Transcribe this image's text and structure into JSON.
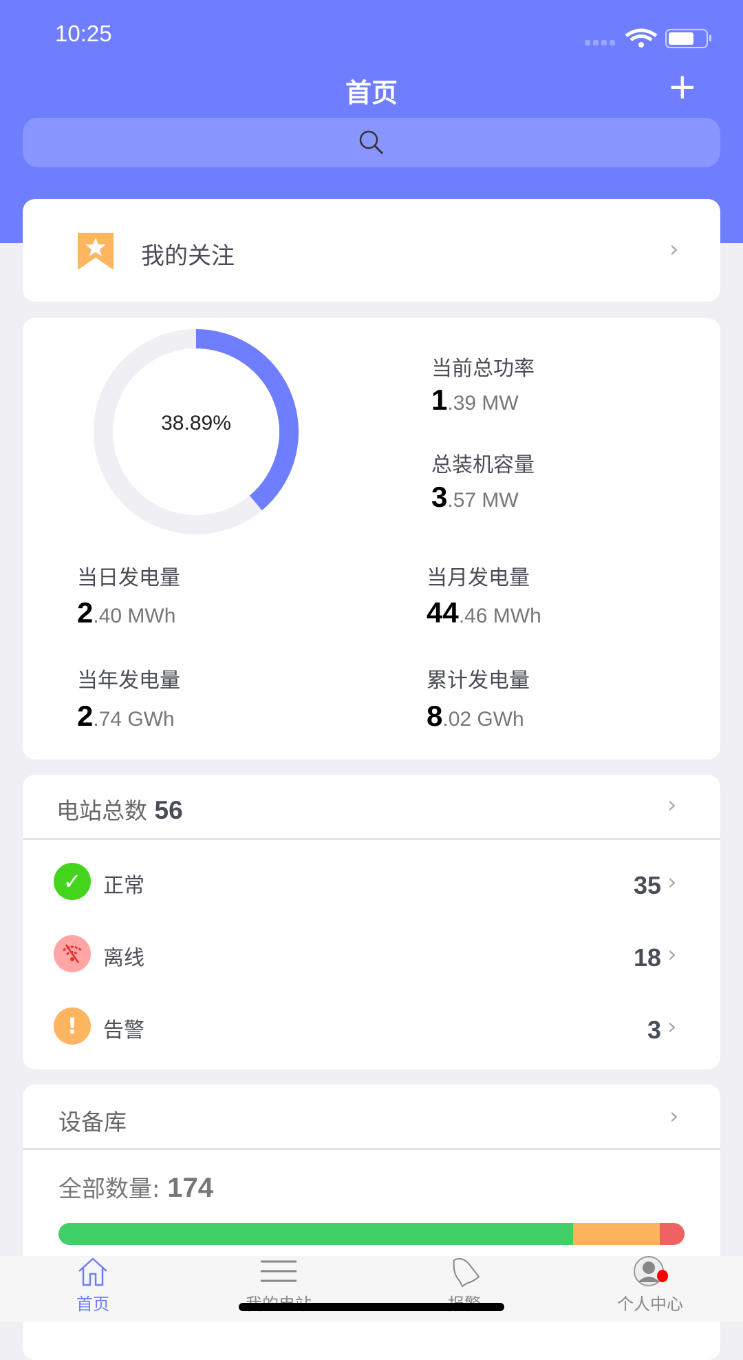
{
  "status_bar": {
    "time": "10:25"
  },
  "header": {
    "title": "首页",
    "add_icon": "plus-icon",
    "search_icon": "search-icon"
  },
  "favorites": {
    "label": "我的关注",
    "icon": "bookmark-star-icon"
  },
  "power": {
    "ratio_label": "38.89%",
    "ratio_value": 0.3889,
    "current_power": {
      "label": "当前总功率",
      "int": "1",
      "rest": ".39 MW"
    },
    "capacity": {
      "label": "总装机容量",
      "int": "3",
      "rest": ".57 MW"
    },
    "stats": [
      {
        "label": "当日发电量",
        "int": "2",
        "rest": ".40 MWh"
      },
      {
        "label": "当月发电量",
        "int": "44",
        "rest": ".46 MWh"
      },
      {
        "label": "当年发电量",
        "int": "2",
        "rest": ".74 GWh"
      },
      {
        "label": "累计发电量",
        "int": "8",
        "rest": ".02 GWh"
      }
    ],
    "colors": {
      "fill": "#6f7dff",
      "track": "#efeff4"
    }
  },
  "stations": {
    "title": "电站总数",
    "total": "56",
    "rows": [
      {
        "label": "正常",
        "count": "35",
        "icon": "check-circle-icon",
        "color": "#44d41c"
      },
      {
        "label": "离线",
        "count": "18",
        "icon": "wifi-off-icon",
        "color": "#ffa5a5"
      },
      {
        "label": "告警",
        "count": "3",
        "icon": "exclamation-circle-icon",
        "color": "#fdb55f"
      }
    ]
  },
  "devices": {
    "title": "设备库",
    "count_label": "全部数量:",
    "count": "174",
    "bar": [
      {
        "fraction": 0.822,
        "color": "#41d068"
      },
      {
        "fraction": 0.138,
        "color": "#fbb35c"
      },
      {
        "fraction": 0.04,
        "color": "#f06262"
      }
    ]
  },
  "tabbar": {
    "active_color": "#6f7dff",
    "items": [
      {
        "label": "首页",
        "icon": "home-icon"
      },
      {
        "label": "我的电站",
        "icon": "list-icon"
      },
      {
        "label": "报警",
        "icon": "bell-icon"
      },
      {
        "label": "个人中心",
        "icon": "user-icon"
      }
    ]
  }
}
